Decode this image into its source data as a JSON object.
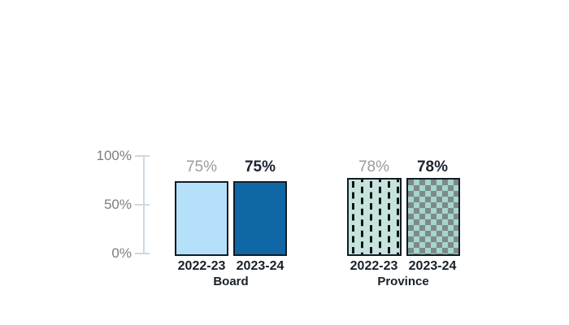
{
  "chart_data": {
    "type": "bar",
    "title": "",
    "grid": false,
    "legend": "none",
    "y_axis": {
      "ylim": [
        0,
        100
      ],
      "unit": "%",
      "ticks": [
        {
          "value": 100,
          "label": "100%"
        },
        {
          "value": 50,
          "label": "50%"
        },
        {
          "value": 0,
          "label": "0%"
        }
      ]
    },
    "groups": [
      {
        "label": "Board",
        "bars": [
          {
            "category": "2022-23",
            "value": 75,
            "display": "75%",
            "emphasis": false,
            "style": "solid-light-blue"
          },
          {
            "category": "2023-24",
            "value": 75,
            "display": "75%",
            "emphasis": true,
            "style": "solid-dark-blue"
          }
        ]
      },
      {
        "label": "Province",
        "bars": [
          {
            "category": "2022-23",
            "value": 78,
            "display": "78%",
            "emphasis": false,
            "style": "teal-vertical-dash-pattern"
          },
          {
            "category": "2023-24",
            "value": 78,
            "display": "78%",
            "emphasis": true,
            "style": "teal-gray-checkerboard-pattern"
          }
        ]
      }
    ]
  },
  "colors": {
    "board_2022_fill": "#B5E0FA",
    "board_2023_fill": "#0F68A5",
    "province_pattern_bg": "#C6E3DC",
    "province_dash": "#0B1418",
    "checker_gray": "#7D8A89",
    "checker_teal": "#A6D5CB",
    "bar_border": "#111C26",
    "axis_line": "#CCD9E2",
    "y_label_text": "#7D7D7D",
    "value_label_muted": "#9B9B9B",
    "value_label_emphasis": "#1B2430",
    "x_label_text": "#16202A"
  }
}
